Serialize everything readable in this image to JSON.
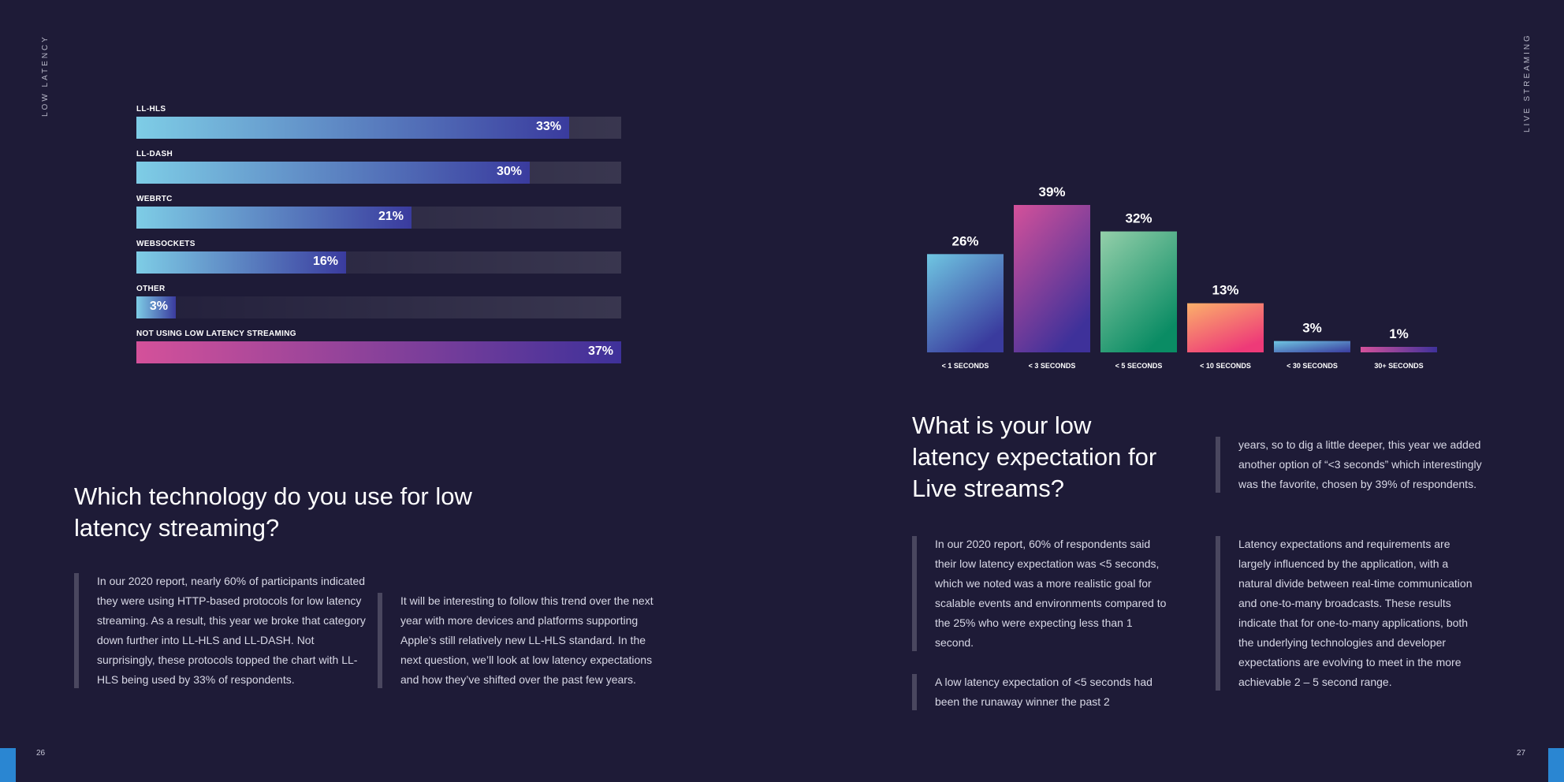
{
  "side_labels": {
    "left": "LOW LATENCY",
    "right": "LIVE STREAMING"
  },
  "page_numbers": {
    "left": "26",
    "right": "27"
  },
  "colors": {
    "background": "#1e1b37",
    "accent_tab": "#2a86d2"
  },
  "chart_data": [
    {
      "type": "bar",
      "orientation": "horizontal",
      "categories": [
        "LL-HLS",
        "LL-DASH",
        "WEBRTC",
        "WEBSOCKETS",
        "OTHER",
        "NOT USING LOW LATENCY STREAMING"
      ],
      "values": [
        33,
        30,
        21,
        16,
        3,
        37
      ],
      "value_labels": [
        "33%",
        "30%",
        "21%",
        "16%",
        "3%",
        "37%"
      ],
      "xlim": [
        0,
        37
      ],
      "title": "",
      "xlabel": "",
      "ylabel": ""
    },
    {
      "type": "bar",
      "orientation": "vertical",
      "categories": [
        "< 1 SECONDS",
        "< 3 SECONDS",
        "< 5 SECONDS",
        "< 10 SECONDS",
        "< 30 SECONDS",
        "30+ SECONDS"
      ],
      "values": [
        26,
        39,
        32,
        13,
        3,
        1
      ],
      "value_labels": [
        "26%",
        "39%",
        "32%",
        "13%",
        "3%",
        "1%"
      ],
      "ylim": [
        0,
        39
      ],
      "title": "",
      "xlabel": "",
      "ylabel": ""
    }
  ],
  "left": {
    "heading": "Which technology do you use for low latency streaming?",
    "para1": "In our 2020 report, nearly 60% of participants indicated they were using HTTP-based protocols for low latency streaming. As a result, this year we broke that category down further into LL-HLS and LL-DASH. Not surprisingly, these protocols topped the chart with LL-HLS being used by 33% of respondents.",
    "para2": "It will be interesting to follow this trend over the next year with more devices and platforms supporting Apple’s still relatively new LL-HLS standard. In the next question, we’ll look at low latency expectations and how they’ve shifted over the past few years."
  },
  "right": {
    "heading": "What is your low latency expectation for Live streams?",
    "para1": "In our 2020 report, 60% of respondents said their low latency expectation was <5 seconds, which we noted was a more realistic goal for scalable events and environments compared to the 25% who were expecting less than 1 second.",
    "para2": "A low latency expectation of <5 seconds had been the runaway winner the past 2",
    "para3": "years, so to dig a little deeper, this year we added another option of “<3 seconds” which interestingly was the favorite, chosen by 39% of respondents.",
    "para4": "Latency expectations and requirements are largely influenced by the application, with a natural divide between real-time communication and one-to-many broadcasts. These results indicate that for one-to-many applications, both the underlying technologies and developer expectations are evolving to meet in the more achievable 2 – 5 second range."
  }
}
